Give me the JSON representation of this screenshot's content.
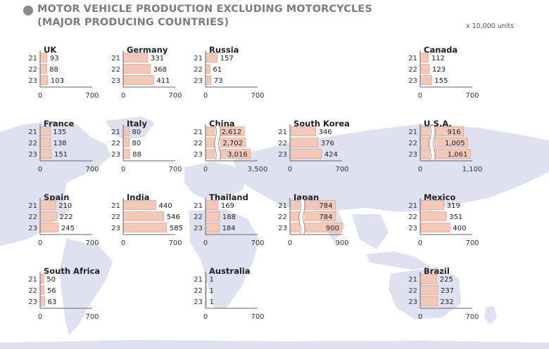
{
  "title": {
    "line1": "MOTOR VEHICLE PRODUCTION EXCLUDING MOTORCYCLES",
    "line2": "(MAJOR PRODUCING COUNTRIES)"
  },
  "unit": "x 10,000 units",
  "colors": {
    "bar_fill": "#f2c9b9",
    "bar_stroke": "#d9947c",
    "map": "#dfe0f0",
    "axis": "#666666",
    "title": "#7c7c7c"
  },
  "chart_data": [
    {
      "type": "bar",
      "orientation": "horizontal",
      "title": "UK",
      "categories": [
        "21",
        "22",
        "23"
      ],
      "values": [
        93,
        88,
        103
      ],
      "data_labels": [
        "93",
        "88",
        "103"
      ],
      "xlim": [
        0,
        700
      ],
      "x_tick_labels": [
        "0",
        "700"
      ]
    },
    {
      "type": "bar",
      "orientation": "horizontal",
      "title": "Germany",
      "categories": [
        "21",
        "22",
        "23"
      ],
      "values": [
        331,
        368,
        411
      ],
      "data_labels": [
        "331",
        "368",
        "411"
      ],
      "xlim": [
        0,
        700
      ],
      "x_tick_labels": [
        "0",
        "700"
      ]
    },
    {
      "type": "bar",
      "orientation": "horizontal",
      "title": "Russia",
      "categories": [
        "21",
        "22",
        "23"
      ],
      "values": [
        157,
        61,
        73
      ],
      "data_labels": [
        "157",
        "61",
        "73"
      ],
      "xlim": [
        0,
        700
      ],
      "x_tick_labels": [
        "0",
        "700"
      ]
    },
    {
      "type": "bar",
      "orientation": "horizontal",
      "title": "Canada",
      "categories": [
        "21",
        "22",
        "23"
      ],
      "values": [
        112,
        123,
        155
      ],
      "data_labels": [
        "112",
        "123",
        "155"
      ],
      "xlim": [
        0,
        700
      ],
      "x_tick_labels": [
        "0",
        "700"
      ]
    },
    {
      "type": "bar",
      "orientation": "horizontal",
      "title": "France",
      "categories": [
        "21",
        "22",
        "23"
      ],
      "values": [
        135,
        138,
        151
      ],
      "data_labels": [
        "135",
        "138",
        "151"
      ],
      "xlim": [
        0,
        700
      ],
      "x_tick_labels": [
        "0",
        "700"
      ]
    },
    {
      "type": "bar",
      "orientation": "horizontal",
      "title": "Italy",
      "categories": [
        "21",
        "22",
        "23"
      ],
      "values": [
        80,
        80,
        88
      ],
      "data_labels": [
        "80",
        "80",
        "88"
      ],
      "xlim": [
        0,
        700
      ],
      "x_tick_labels": [
        "0",
        "700"
      ]
    },
    {
      "type": "bar",
      "orientation": "horizontal",
      "title": "China",
      "categories": [
        "21",
        "22",
        "23"
      ],
      "values": [
        2612,
        2702,
        3016
      ],
      "data_labels": [
        "2,612",
        "2,702",
        "3,016"
      ],
      "xlim": [
        0,
        3500
      ],
      "x_tick_labels": [
        "0",
        "3,500"
      ],
      "axis_break": true
    },
    {
      "type": "bar",
      "orientation": "horizontal",
      "title": "South Korea",
      "categories": [
        "21",
        "22",
        "23"
      ],
      "values": [
        346,
        376,
        424
      ],
      "data_labels": [
        "346",
        "376",
        "424"
      ],
      "xlim": [
        0,
        700
      ],
      "x_tick_labels": [
        "0",
        "700"
      ]
    },
    {
      "type": "bar",
      "orientation": "horizontal",
      "title": "U.S.A.",
      "categories": [
        "21",
        "22",
        "23"
      ],
      "values": [
        916,
        1005,
        1061
      ],
      "data_labels": [
        "916",
        "1,005",
        "1,061"
      ],
      "xlim": [
        0,
        1100
      ],
      "x_tick_labels": [
        "0",
        "1,100"
      ],
      "axis_break": true
    },
    {
      "type": "bar",
      "orientation": "horizontal",
      "title": "Spain",
      "categories": [
        "21",
        "22",
        "23"
      ],
      "values": [
        210,
        222,
        245
      ],
      "data_labels": [
        "210",
        "222",
        "245"
      ],
      "xlim": [
        0,
        700
      ],
      "x_tick_labels": [
        "0",
        "700"
      ]
    },
    {
      "type": "bar",
      "orientation": "horizontal",
      "title": "India",
      "categories": [
        "21",
        "22",
        "23"
      ],
      "values": [
        440,
        546,
        585
      ],
      "data_labels": [
        "440",
        "546",
        "585"
      ],
      "xlim": [
        0,
        700
      ],
      "x_tick_labels": [
        "0",
        "700"
      ]
    },
    {
      "type": "bar",
      "orientation": "horizontal",
      "title": "Thailand",
      "categories": [
        "21",
        "22",
        "23"
      ],
      "values": [
        169,
        188,
        184
      ],
      "data_labels": [
        "169",
        "188",
        "184"
      ],
      "xlim": [
        0,
        700
      ],
      "x_tick_labels": [
        "0",
        "700"
      ]
    },
    {
      "type": "bar",
      "orientation": "horizontal",
      "title": "Japan",
      "categories": [
        "21",
        "22",
        "23"
      ],
      "values": [
        784,
        784,
        900
      ],
      "data_labels": [
        "784",
        "784",
        "900"
      ],
      "xlim": [
        0,
        900
      ],
      "x_tick_labels": [
        "0",
        "900"
      ],
      "axis_break": true
    },
    {
      "type": "bar",
      "orientation": "horizontal",
      "title": "Mexico",
      "categories": [
        "21",
        "22",
        "23"
      ],
      "values": [
        319,
        351,
        400
      ],
      "data_labels": [
        "319",
        "351",
        "400"
      ],
      "xlim": [
        0,
        700
      ],
      "x_tick_labels": [
        "0",
        "700"
      ]
    },
    {
      "type": "bar",
      "orientation": "horizontal",
      "title": "South Africa",
      "categories": [
        "21",
        "22",
        "23"
      ],
      "values": [
        50,
        56,
        63
      ],
      "data_labels": [
        "50",
        "56",
        "63"
      ],
      "xlim": [
        0,
        700
      ],
      "x_tick_labels": [
        "0",
        "700"
      ]
    },
    {
      "type": "bar",
      "orientation": "horizontal",
      "title": "Australia",
      "categories": [
        "21",
        "22",
        "23"
      ],
      "values": [
        1,
        1,
        1
      ],
      "data_labels": [
        "1",
        "1",
        "1"
      ],
      "xlim": [
        0,
        700
      ],
      "x_tick_labels": [
        "0",
        "700"
      ]
    },
    {
      "type": "bar",
      "orientation": "horizontal",
      "title": "Brazil",
      "categories": [
        "21",
        "22",
        "23"
      ],
      "values": [
        225,
        237,
        232
      ],
      "data_labels": [
        "225",
        "237",
        "232"
      ],
      "xlim": [
        0,
        700
      ],
      "x_tick_labels": [
        "0",
        "700"
      ]
    }
  ]
}
